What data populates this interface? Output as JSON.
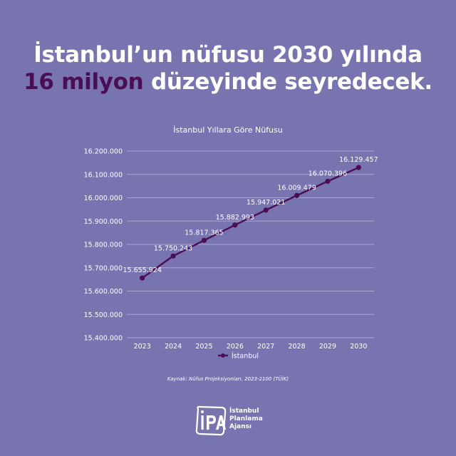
{
  "headline": {
    "line1": "İstanbul’un nüfusu 2030 yılında",
    "line2_highlight": "16 milyon",
    "line2_rest": " düzeyinde seyredecek."
  },
  "source": "Kaynak: Nüfus Projeksiyonları, 2023-2100 (TÜİK)",
  "logo": {
    "mark": "İPA",
    "org_lines": [
      "İstanbul",
      "Planlama",
      "Ajansı"
    ]
  },
  "colors": {
    "background": "#7774b0",
    "series": "#4a0f52",
    "highlight": "#4a0f52",
    "text": "#ffffff",
    "grid": "#a9a7d2"
  },
  "chart_data": {
    "type": "line",
    "title": "İstanbul Yıllara Göre Nüfusu",
    "categories": [
      "2023",
      "2024",
      "2025",
      "2026",
      "2027",
      "2028",
      "2029",
      "2030"
    ],
    "series": [
      {
        "name": "İstanbul",
        "values": [
          15655924,
          15750243,
          15817365,
          15882993,
          15947021,
          16009479,
          16070396,
          16129457
        ],
        "labels": [
          "15.655.924",
          "15.750.243",
          "15.817.365",
          "15.882.993",
          "15.947.021",
          "16.009.479",
          "16.070.396",
          "16.129.457"
        ]
      }
    ],
    "y_ticks": [
      "16.200.000",
      "16.100.000",
      "16.000.000",
      "15.900.000",
      "15.800.000",
      "15.700.000",
      "15.600.000",
      "15.500.000",
      "15.400.000"
    ],
    "ylim": [
      15400000,
      16200000
    ],
    "grid": true,
    "legend_position": "bottom"
  }
}
